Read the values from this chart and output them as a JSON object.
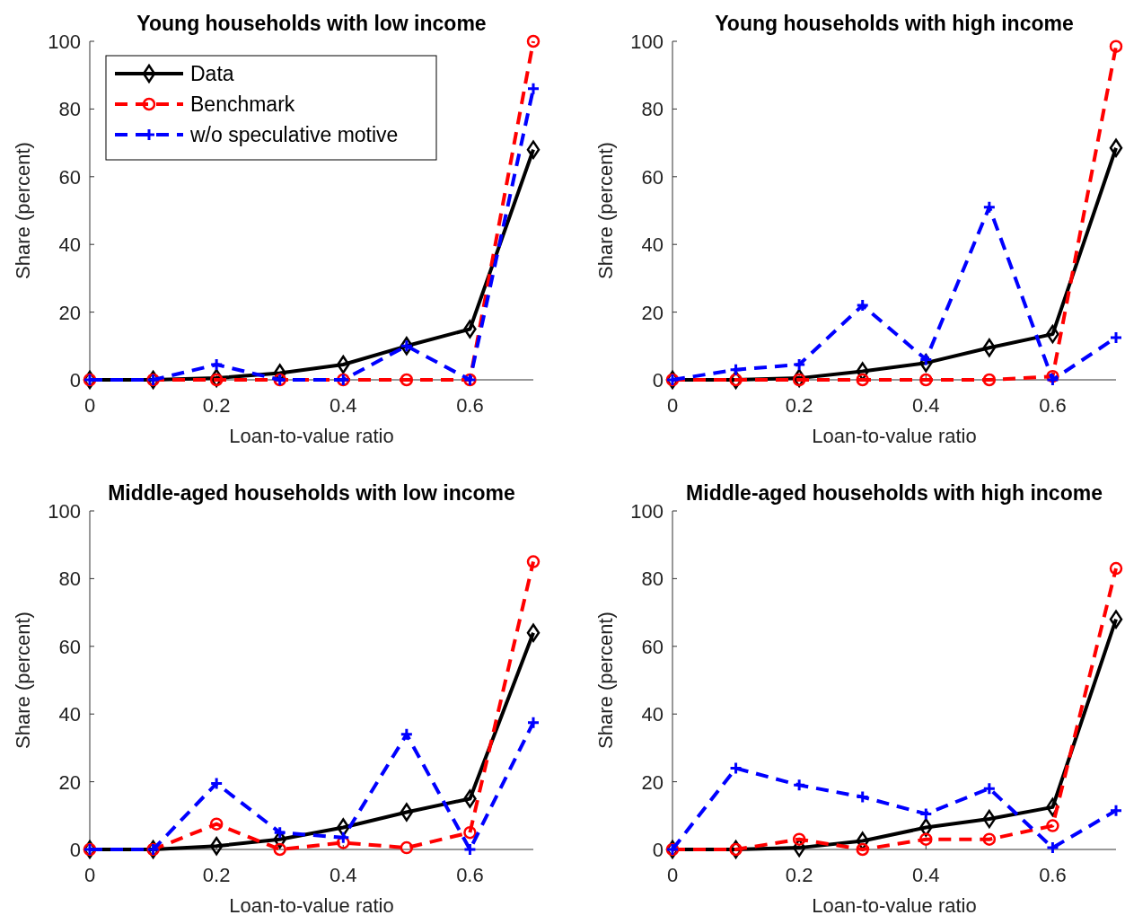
{
  "chart_data": [
    {
      "type": "line",
      "title": "Young households with low income",
      "xlabel": "Loan-to-value ratio",
      "ylabel": "Share (percent)",
      "x": [
        0,
        0.1,
        0.2,
        0.3,
        0.4,
        0.5,
        0.6,
        0.7
      ],
      "xlim": [
        0,
        0.7
      ],
      "xticks": [
        0,
        0.2,
        0.4,
        0.6
      ],
      "ylim": [
        0,
        100
      ],
      "yticks": [
        0,
        20,
        40,
        60,
        80,
        100
      ],
      "legend": "top left",
      "series": [
        {
          "name": "Data",
          "color": "#000000",
          "marker": "diamond",
          "line_style": "solid",
          "values": [
            0,
            0,
            0.5,
            2,
            4.5,
            10,
            15,
            68
          ]
        },
        {
          "name": "Benchmark",
          "color": "#ff0000",
          "marker": "circle",
          "line_style": "dashed",
          "values": [
            0,
            0,
            0,
            0,
            0,
            0,
            0,
            100
          ]
        },
        {
          "name": "w/o speculative motive",
          "color": "#0000ff",
          "marker": "cross",
          "line_style": "dashed",
          "values": [
            0,
            0,
            4.5,
            0,
            0,
            10,
            0,
            86
          ]
        }
      ]
    },
    {
      "type": "line",
      "title": "Young households with high income",
      "xlabel": "Loan-to-value ratio",
      "ylabel": "Share (percent)",
      "x": [
        0,
        0.1,
        0.2,
        0.3,
        0.4,
        0.5,
        0.6,
        0.7
      ],
      "xlim": [
        0,
        0.7
      ],
      "xticks": [
        0,
        0.2,
        0.4,
        0.6
      ],
      "ylim": [
        0,
        100
      ],
      "yticks": [
        0,
        20,
        40,
        60,
        80,
        100
      ],
      "series": [
        {
          "color": "#000000",
          "marker": "diamond",
          "line_style": "solid",
          "values": [
            0,
            0,
            0.5,
            2.5,
            5,
            9.5,
            13.5,
            68.5
          ]
        },
        {
          "color": "#ff0000",
          "marker": "circle",
          "line_style": "dashed",
          "values": [
            0,
            0,
            0,
            0,
            0,
            0,
            1,
            98.5
          ]
        },
        {
          "color": "#0000ff",
          "marker": "cross",
          "line_style": "dashed",
          "values": [
            0,
            3,
            4.5,
            22,
            6,
            51,
            0,
            12.5
          ]
        }
      ]
    },
    {
      "type": "line",
      "title": "Middle-aged households with low income",
      "xlabel": "Loan-to-value ratio",
      "ylabel": "Share (percent)",
      "x": [
        0,
        0.1,
        0.2,
        0.3,
        0.4,
        0.5,
        0.6,
        0.7
      ],
      "xlim": [
        0,
        0.7
      ],
      "xticks": [
        0,
        0.2,
        0.4,
        0.6
      ],
      "ylim": [
        0,
        100
      ],
      "yticks": [
        0,
        20,
        40,
        60,
        80,
        100
      ],
      "series": [
        {
          "color": "#000000",
          "marker": "diamond",
          "line_style": "solid",
          "values": [
            0,
            0,
            1,
            3,
            6.5,
            11,
            15,
            64
          ]
        },
        {
          "color": "#ff0000",
          "marker": "circle",
          "line_style": "dashed",
          "values": [
            0,
            0,
            7.5,
            0,
            2,
            0.5,
            5,
            85
          ]
        },
        {
          "color": "#0000ff",
          "marker": "cross",
          "line_style": "dashed",
          "values": [
            0,
            0,
            19.5,
            5,
            3.5,
            34,
            0,
            37.5
          ]
        }
      ]
    },
    {
      "type": "line",
      "title": "Middle-aged households with high income",
      "xlabel": "Loan-to-value ratio",
      "ylabel": "Share (percent)",
      "x": [
        0,
        0.1,
        0.2,
        0.3,
        0.4,
        0.5,
        0.6,
        0.7
      ],
      "xlim": [
        0,
        0.7
      ],
      "xticks": [
        0,
        0.2,
        0.4,
        0.6
      ],
      "ylim": [
        0,
        100
      ],
      "yticks": [
        0,
        20,
        40,
        60,
        80,
        100
      ],
      "series": [
        {
          "color": "#000000",
          "marker": "diamond",
          "line_style": "solid",
          "values": [
            0,
            0,
            0.5,
            2.5,
            6.5,
            9,
            12.5,
            68
          ]
        },
        {
          "color": "#ff0000",
          "marker": "circle",
          "line_style": "dashed",
          "values": [
            0,
            0,
            3,
            0,
            3,
            3,
            7,
            83
          ]
        },
        {
          "color": "#0000ff",
          "marker": "cross",
          "line_style": "dashed",
          "values": [
            0,
            24,
            19,
            15.5,
            10.5,
            18,
            0.5,
            11.5
          ]
        }
      ]
    }
  ]
}
